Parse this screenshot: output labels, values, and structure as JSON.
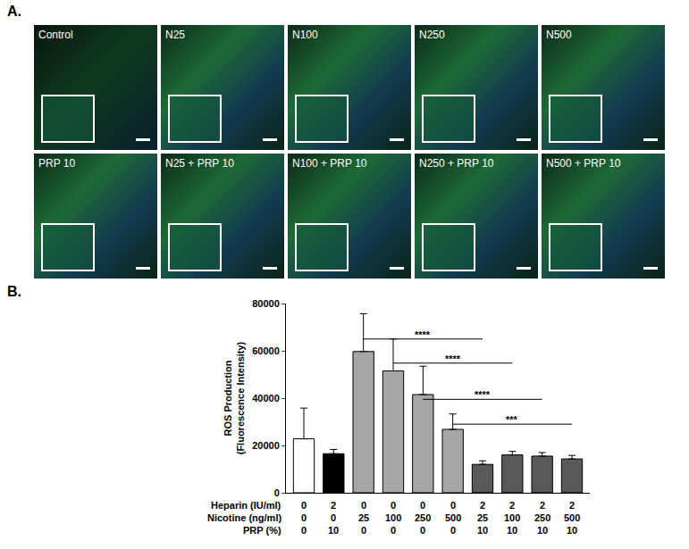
{
  "panel_a": {
    "letter": "A.",
    "images": [
      "Control",
      "N25",
      "N100",
      "N250",
      "N500",
      "PRP 10",
      "N25 + PRP 10",
      "N100 + PRP 10",
      "N250 + PRP 10",
      "N500 + PRP 10"
    ]
  },
  "panel_b": {
    "letter": "B."
  },
  "chart_data": {
    "type": "bar",
    "y_label": "ROS Production\n(Fluorescence Intensity)",
    "categories": [
      null,
      null,
      null,
      null,
      null,
      null,
      null,
      null,
      null,
      null
    ],
    "values": [
      22800,
      16500,
      59700,
      51500,
      41500,
      26800,
      12000,
      16000,
      15500,
      14300
    ],
    "errors": [
      13000,
      1800,
      16000,
      13500,
      12000,
      6500,
      1500,
      1500,
      1500,
      1500
    ],
    "colors": [
      "#ffffff",
      "#000000",
      "#a6a6a6",
      "#a6a6a6",
      "#a6a6a6",
      "#a6a6a6",
      "#595959",
      "#595959",
      "#595959",
      "#595959"
    ],
    "condition_table": [
      {
        "label": "Heparin (IU/ml)",
        "values": [
          0,
          2,
          0,
          0,
          0,
          0,
          2,
          2,
          2,
          2
        ]
      },
      {
        "label": "Nicotine (ng/ml)",
        "values": [
          0,
          0,
          25,
          100,
          250,
          500,
          25,
          100,
          250,
          500
        ]
      },
      {
        "label": "PRP (%)",
        "values": [
          0,
          10,
          0,
          0,
          0,
          0,
          10,
          10,
          10,
          10
        ]
      }
    ],
    "comparisons": [
      {
        "from": 2,
        "to": 6,
        "y": 65000,
        "label": "****"
      },
      {
        "from": 3,
        "to": 7,
        "y": 54800,
        "label": "****"
      },
      {
        "from": 4,
        "to": 8,
        "y": 39500,
        "label": "****"
      },
      {
        "from": 5,
        "to": 9,
        "y": 29000,
        "label": "***"
      }
    ],
    "ylim": [
      0,
      80000
    ],
    "yticks": [
      0,
      20000,
      40000,
      60000,
      80000
    ],
    "grid": false
  }
}
